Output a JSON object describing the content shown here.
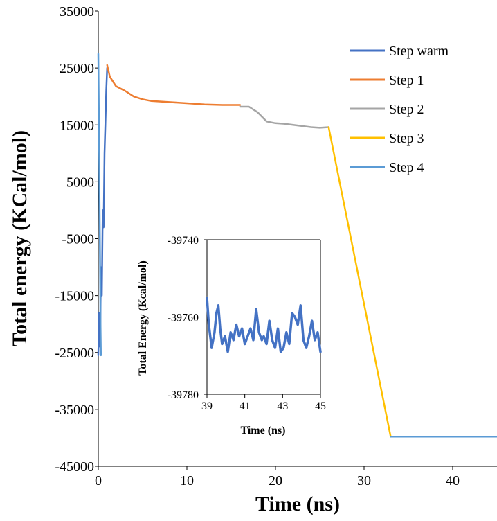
{
  "chart_data": [
    {
      "type": "line",
      "xlabel": "Time (ns)",
      "ylabel": "Total energy (KCal/mol)",
      "xlim": [
        0,
        45
      ],
      "ylim": [
        -45000,
        35000
      ],
      "x_ticks": [
        0,
        10,
        20,
        30,
        40
      ],
      "y_ticks": [
        35000,
        25000,
        15000,
        5000,
        -5000,
        -15000,
        -25000,
        -35000,
        -45000
      ],
      "grid": false,
      "legend_position": "top-right",
      "series": [
        {
          "name": "Step warm",
          "color": "#4472c4",
          "points": [
            [
              0.0,
              -25500
            ],
            [
              0.1,
              -18000
            ],
            [
              0.2,
              -24000
            ],
            [
              0.3,
              -10000
            ],
            [
              0.4,
              -15000
            ],
            [
              0.5,
              0
            ],
            [
              0.6,
              -3000
            ],
            [
              0.7,
              10000
            ],
            [
              0.8,
              15000
            ],
            [
              0.9,
              21000
            ],
            [
              1.0,
              25000
            ]
          ]
        },
        {
          "name": "Step 1",
          "color": "#ed7d31",
          "points": [
            [
              1.0,
              25500
            ],
            [
              1.3,
              23500
            ],
            [
              1.7,
              22500
            ],
            [
              2.0,
              21800
            ],
            [
              3.0,
              21000
            ],
            [
              4.0,
              20000
            ],
            [
              5.0,
              19500
            ],
            [
              6.0,
              19200
            ],
            [
              8.0,
              19000
            ],
            [
              10.0,
              18800
            ],
            [
              12.0,
              18600
            ],
            [
              14.0,
              18500
            ],
            [
              16.0,
              18500
            ]
          ]
        },
        {
          "name": "Step 2",
          "color": "#a5a5a5",
          "points": [
            [
              16.0,
              18200
            ],
            [
              17.0,
              18200
            ],
            [
              18.0,
              17200
            ],
            [
              19.0,
              15600
            ],
            [
              20.0,
              15300
            ],
            [
              21.0,
              15200
            ],
            [
              22.0,
              15000
            ],
            [
              23.0,
              14800
            ],
            [
              24.0,
              14600
            ],
            [
              25.0,
              14500
            ],
            [
              26.0,
              14600
            ]
          ]
        },
        {
          "name": "Step 3",
          "color": "#ffc000",
          "points": [
            [
              26.0,
              14600
            ],
            [
              33.0,
              -39800
            ]
          ]
        },
        {
          "name": "Step 4",
          "color": "#5b9bd5",
          "points": [
            [
              33.0,
              -39800
            ],
            [
              45.0,
              -39800
            ]
          ]
        },
        {
          "color": "#5b9bd5",
          "points": [
            [
              0.0,
              27500
            ],
            [
              0.05,
              20000
            ],
            [
              0.1,
              10000
            ],
            [
              0.15,
              0
            ],
            [
              0.2,
              -10000
            ],
            [
              0.25,
              -20000
            ],
            [
              0.3,
              -25500
            ]
          ]
        }
      ]
    },
    {
      "type": "line",
      "xlabel": "Time (ns)",
      "ylabel": "Total Energy (Kcal/mol)",
      "xlim": [
        39,
        45
      ],
      "ylim": [
        -39780,
        -39740
      ],
      "x_ticks": [
        39,
        41,
        43,
        45
      ],
      "y_ticks": [
        -39740,
        -39760,
        -39780
      ],
      "grid": false,
      "series": [
        {
          "color": "#4472c4",
          "points": [
            [
              39.0,
              -39755
            ],
            [
              39.1,
              -39762
            ],
            [
              39.25,
              -39768
            ],
            [
              39.4,
              -39764
            ],
            [
              39.5,
              -39759
            ],
            [
              39.6,
              -39757
            ],
            [
              39.7,
              -39763
            ],
            [
              39.8,
              -39767
            ],
            [
              39.95,
              -39765
            ],
            [
              40.1,
              -39769
            ],
            [
              40.25,
              -39764
            ],
            [
              40.4,
              -39766
            ],
            [
              40.55,
              -39762
            ],
            [
              40.7,
              -39765
            ],
            [
              40.85,
              -39763
            ],
            [
              41.0,
              -39767
            ],
            [
              41.15,
              -39765
            ],
            [
              41.3,
              -39763
            ],
            [
              41.45,
              -39766
            ],
            [
              41.6,
              -39758
            ],
            [
              41.75,
              -39764
            ],
            [
              41.9,
              -39766
            ],
            [
              42.0,
              -39765
            ],
            [
              42.15,
              -39767
            ],
            [
              42.3,
              -39761
            ],
            [
              42.45,
              -39766
            ],
            [
              42.6,
              -39768
            ],
            [
              42.75,
              -39763
            ],
            [
              42.9,
              -39769
            ],
            [
              43.05,
              -39768
            ],
            [
              43.2,
              -39764
            ],
            [
              43.35,
              -39767
            ],
            [
              43.5,
              -39759
            ],
            [
              43.65,
              -39760
            ],
            [
              43.8,
              -39762
            ],
            [
              43.95,
              -39757
            ],
            [
              44.1,
              -39766
            ],
            [
              44.25,
              -39768
            ],
            [
              44.4,
              -39765
            ],
            [
              44.55,
              -39761
            ],
            [
              44.7,
              -39766
            ],
            [
              44.85,
              -39764
            ],
            [
              45.0,
              -39769
            ]
          ]
        }
      ]
    }
  ]
}
